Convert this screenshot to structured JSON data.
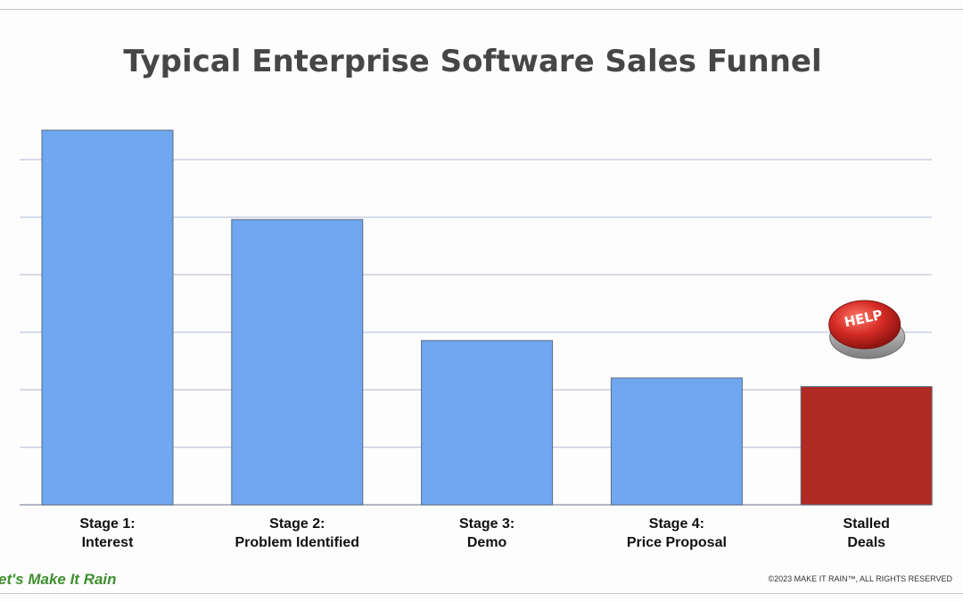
{
  "chart_data": {
    "type": "bar",
    "title": "Typical Enterprise Software Sales Funnel",
    "categories": [
      [
        "Stage 1:",
        "Interest"
      ],
      [
        "Stage 2:",
        "Problem Identified"
      ],
      [
        "Stage 3:",
        "Demo"
      ],
      [
        "Stage 4:",
        "Price Proposal"
      ],
      [
        "Stalled",
        "Deals"
      ]
    ],
    "values": [
      6.5,
      4.95,
      2.85,
      2.2,
      2.05
    ],
    "colors": [
      "#6fa8f0",
      "#6fa8f0",
      "#6fa8f0",
      "#6fa8f0",
      "#b02a24"
    ],
    "ylim": [
      0,
      6.5
    ],
    "grid": true,
    "yticks_labeled": false,
    "annotation": {
      "icon": "help-button-icon",
      "text": "HELP",
      "attached_to": "Stalled Deals",
      "colors": {
        "button": "#d42a24",
        "base": "#9a9a9a"
      }
    }
  },
  "footer": {
    "brand": "et's Make It Rain",
    "copyright": "©2023 MAKE IT RAIN™, ALL RIGHTS RESERVED"
  },
  "colors": {
    "title": "#464646",
    "gridline": "#c9cfe0",
    "brand_green": "#3f8f2f"
  }
}
